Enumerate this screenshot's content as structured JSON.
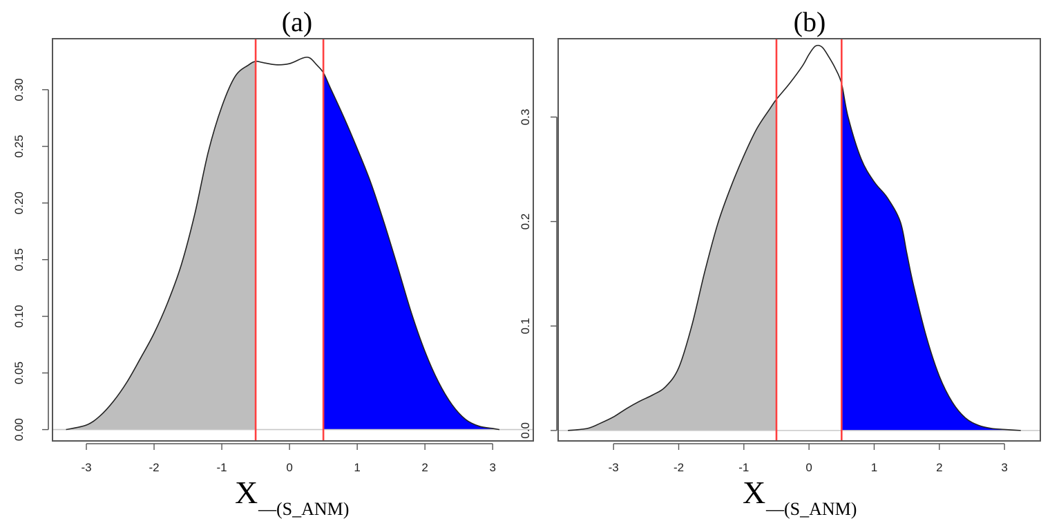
{
  "chart_data": [
    {
      "type": "area",
      "title": "(a)",
      "xlabel_main": "X",
      "xlabel_sub": "—(S_ANM)",
      "ylabel": "",
      "xlim": [
        -3.5,
        3.6
      ],
      "ylim": [
        -0.01,
        0.345
      ],
      "xticks": [
        -3,
        -2,
        -1,
        0,
        1,
        2,
        3
      ],
      "xtick_labels": [
        "-3",
        "-2",
        "-1",
        "0",
        "1",
        "2",
        "3"
      ],
      "yticks": [
        0,
        0.05,
        0.1,
        0.15,
        0.2,
        0.25,
        0.3
      ],
      "ytick_labels": [
        "0.00",
        "0.05",
        "0.10",
        "0.15",
        "0.20",
        "0.25",
        "0.30"
      ],
      "grid": false,
      "cutoffs": [
        -0.5,
        0.5
      ],
      "regions": [
        {
          "name": "left tail",
          "from": -3.3,
          "to": -0.5,
          "color": "#bebebe"
        },
        {
          "name": "right tail",
          "from": 0.5,
          "to": 3.1,
          "color": "#0000ff"
        }
      ],
      "cutoff_color": "#ff4040",
      "x": [
        -3.3,
        -3.0,
        -2.8,
        -2.6,
        -2.4,
        -2.2,
        -2.0,
        -1.8,
        -1.6,
        -1.4,
        -1.2,
        -1.0,
        -0.8,
        -0.6,
        -0.5,
        -0.4,
        -0.2,
        0.0,
        0.2,
        0.3,
        0.4,
        0.5,
        0.6,
        0.8,
        1.0,
        1.2,
        1.4,
        1.6,
        1.8,
        2.0,
        2.2,
        2.4,
        2.6,
        2.8,
        3.0,
        3.1
      ],
      "y": [
        0.0,
        0.004,
        0.012,
        0.025,
        0.042,
        0.063,
        0.085,
        0.112,
        0.145,
        0.19,
        0.245,
        0.285,
        0.312,
        0.322,
        0.325,
        0.324,
        0.322,
        0.323,
        0.328,
        0.328,
        0.322,
        0.315,
        0.302,
        0.276,
        0.248,
        0.218,
        0.182,
        0.143,
        0.103,
        0.069,
        0.042,
        0.022,
        0.009,
        0.003,
        0.001,
        0.0
      ]
    },
    {
      "type": "area",
      "title": "(b)",
      "xlabel_main": "X",
      "xlabel_sub": "—(S_ANM)",
      "ylabel": "",
      "xlim": [
        -3.85,
        3.55
      ],
      "ylim": [
        -0.01,
        0.375
      ],
      "xticks": [
        -3,
        -2,
        -1,
        0,
        1,
        2,
        3
      ],
      "xtick_labels": [
        "-3",
        "-2",
        "-1",
        "0",
        "1",
        "2",
        "3"
      ],
      "yticks": [
        0,
        0.1,
        0.2,
        0.3
      ],
      "ytick_labels": [
        "0.0",
        "0.1",
        "0.2",
        "0.3"
      ],
      "grid": false,
      "cutoffs": [
        -0.5,
        0.5
      ],
      "regions": [
        {
          "name": "left tail",
          "from": -3.7,
          "to": -0.5,
          "color": "#bebebe"
        },
        {
          "name": "right tail",
          "from": 0.5,
          "to": 3.25,
          "color": "#0000ff"
        }
      ],
      "cutoff_color": "#ff4040",
      "x": [
        -3.7,
        -3.4,
        -3.2,
        -3.0,
        -2.8,
        -2.6,
        -2.4,
        -2.2,
        -2.0,
        -1.8,
        -1.6,
        -1.4,
        -1.2,
        -1.0,
        -0.8,
        -0.6,
        -0.5,
        -0.3,
        -0.1,
        0.0,
        0.1,
        0.2,
        0.3,
        0.4,
        0.5,
        0.6,
        0.8,
        1.0,
        1.2,
        1.4,
        1.5,
        1.6,
        1.8,
        2.0,
        2.2,
        2.4,
        2.6,
        2.8,
        3.0,
        3.25
      ],
      "y": [
        0.0,
        0.002,
        0.007,
        0.013,
        0.021,
        0.028,
        0.034,
        0.042,
        0.06,
        0.1,
        0.152,
        0.198,
        0.233,
        0.263,
        0.289,
        0.308,
        0.317,
        0.332,
        0.349,
        0.36,
        0.368,
        0.367,
        0.358,
        0.347,
        0.332,
        0.3,
        0.26,
        0.238,
        0.223,
        0.2,
        0.17,
        0.14,
        0.09,
        0.052,
        0.027,
        0.012,
        0.005,
        0.002,
        0.001,
        0.0
      ]
    }
  ]
}
